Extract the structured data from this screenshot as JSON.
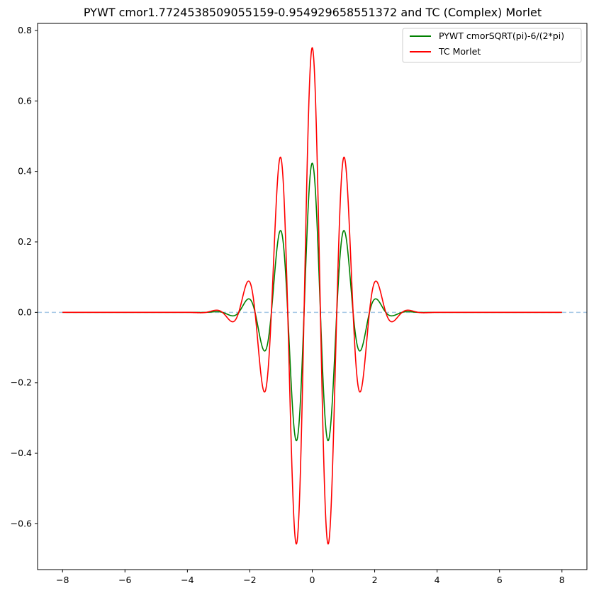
{
  "chart_data": {
    "type": "line",
    "title": "PYWT cmor1.7724538509055159-0.954929658551372 and TC (Complex) Morlet",
    "xlabel": "",
    "ylabel": "",
    "xlim": [
      -8.8,
      8.8
    ],
    "ylim": [
      -0.73,
      0.82
    ],
    "x_ticks": [
      -8,
      -6,
      -4,
      -2,
      0,
      2,
      4,
      6,
      8
    ],
    "x_tick_labels": [
      "−8",
      "−6",
      "−4",
      "−2",
      "0",
      "2",
      "4",
      "6",
      "8"
    ],
    "y_ticks": [
      -0.6,
      -0.4,
      -0.2,
      0.0,
      0.2,
      0.4,
      0.6,
      0.8
    ],
    "y_tick_labels": [
      "−0.6",
      "−0.4",
      "−0.2",
      "0.0",
      "0.2",
      "0.4",
      "0.6",
      "0.8"
    ],
    "grid": false,
    "legend_position": "top-right",
    "reference_line": {
      "y": 0.0,
      "style": "dashed",
      "color": "#a6c8e6"
    },
    "series": [
      {
        "name": "PYWT cmorSQRT(pi)-6/(2*pi)",
        "color": "#008000",
        "x_range": [
          -8,
          8
        ],
        "function": {
          "amplitude": 0.4232,
          "frequency": 0.954929658551372,
          "gauss_denominator": 1.7724538509055159
        },
        "key_points": [
          {
            "x": 0.0,
            "y": 0.423
          },
          {
            "x": -0.5,
            "y": -0.365
          },
          {
            "x": 0.5,
            "y": -0.365
          },
          {
            "x": -1.0,
            "y": 0.232
          },
          {
            "x": 1.0,
            "y": 0.232
          },
          {
            "x": -1.5,
            "y": -0.11
          },
          {
            "x": 1.5,
            "y": -0.11
          },
          {
            "x": -2.05,
            "y": 0.038
          },
          {
            "x": 2.05,
            "y": 0.038
          },
          {
            "x": -2.5,
            "y": -0.01
          },
          {
            "x": 2.5,
            "y": -0.01
          }
        ]
      },
      {
        "name": "TC Morlet",
        "color": "#ff0000",
        "x_range": [
          -8,
          8
        ],
        "function": {
          "amplitude": 0.7511,
          "frequency": 0.954929658551372,
          "gauss_denominator": 2.0
        },
        "key_points": [
          {
            "x": 0.0,
            "y": 0.751
          },
          {
            "x": -0.5,
            "y": -0.655
          },
          {
            "x": 0.5,
            "y": -0.655
          },
          {
            "x": -1.0,
            "y": 0.44
          },
          {
            "x": 1.0,
            "y": 0.44
          },
          {
            "x": -1.5,
            "y": -0.225
          },
          {
            "x": 1.5,
            "y": -0.225
          },
          {
            "x": -2.0,
            "y": 0.088
          },
          {
            "x": 2.0,
            "y": 0.088
          },
          {
            "x": -2.5,
            "y": -0.027
          },
          {
            "x": 2.5,
            "y": -0.027
          },
          {
            "x": -3.05,
            "y": 0.006
          },
          {
            "x": 3.05,
            "y": 0.006
          }
        ]
      }
    ]
  }
}
